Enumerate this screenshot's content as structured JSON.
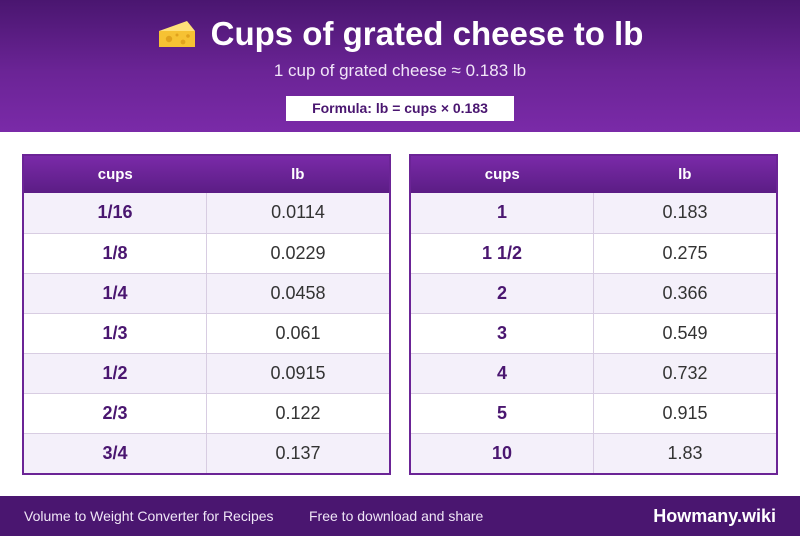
{
  "header": {
    "title": "Cups of grated cheese to lb",
    "subtitle": "1 cup of grated cheese ≈ 0.183 lb",
    "formula": "Formula: lb = cups × 0.183",
    "icon": "cheese-icon"
  },
  "tables": [
    {
      "col_cups": "cups",
      "col_lb": "lb",
      "rows": [
        {
          "cups": "1/16",
          "lb": "0.0114"
        },
        {
          "cups": "1/8",
          "lb": "0.0229"
        },
        {
          "cups": "1/4",
          "lb": "0.0458"
        },
        {
          "cups": "1/3",
          "lb": "0.061"
        },
        {
          "cups": "1/2",
          "lb": "0.0915"
        },
        {
          "cups": "2/3",
          "lb": "0.122"
        },
        {
          "cups": "3/4",
          "lb": "0.137"
        }
      ]
    },
    {
      "col_cups": "cups",
      "col_lb": "lb",
      "rows": [
        {
          "cups": "1",
          "lb": "0.183"
        },
        {
          "cups": "1 1/2",
          "lb": "0.275"
        },
        {
          "cups": "2",
          "lb": "0.366"
        },
        {
          "cups": "3",
          "lb": "0.549"
        },
        {
          "cups": "4",
          "lb": "0.732"
        },
        {
          "cups": "5",
          "lb": "0.915"
        },
        {
          "cups": "10",
          "lb": "1.83"
        }
      ]
    }
  ],
  "footer": {
    "left": "Volume to Weight Converter for Recipes",
    "middle": "Free to download and share",
    "brand": "Howmany.wiki"
  },
  "colors": {
    "primary": "#6b2496",
    "dark": "#4a1670",
    "row_alt": "#f4f0fa"
  }
}
